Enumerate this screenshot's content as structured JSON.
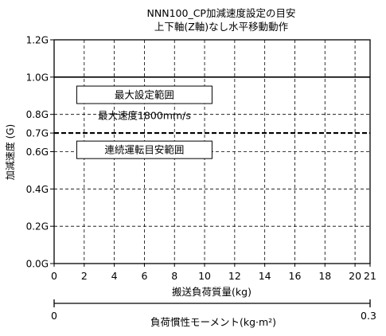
{
  "chart_data": {
    "type": "line",
    "title": [
      "NNN100_CP加減速度設定の目安",
      "上下軸(Z軸)なし水平移動動作"
    ],
    "xlabel": "搬送負荷質量(kg)",
    "ylabel": "加減速度 (G)",
    "xlim": [
      0,
      21
    ],
    "ylim": [
      0,
      1.2
    ],
    "x_ticks": [
      0,
      2,
      4,
      6,
      8,
      10,
      12,
      14,
      16,
      18,
      20,
      21
    ],
    "y_ticks": [
      {
        "value": 0.0,
        "label": "0.0G"
      },
      {
        "value": 0.2,
        "label": "0.2G"
      },
      {
        "value": 0.4,
        "label": "0.4G"
      },
      {
        "value": 0.6,
        "label": "0.6G"
      },
      {
        "value": 0.7,
        "label": "0.7G"
      },
      {
        "value": 0.8,
        "label": "0.8G"
      },
      {
        "value": 1.0,
        "label": "1.0G"
      },
      {
        "value": 1.2,
        "label": "1.2G"
      }
    ],
    "grid": true,
    "series": [
      {
        "name": "最大設定範囲",
        "style": "solid",
        "x": [
          0,
          21
        ],
        "y": [
          1.0,
          1.0
        ],
        "color": "#000000"
      },
      {
        "name": "連続運転目安範囲",
        "style": "dashed",
        "x": [
          0,
          21
        ],
        "y": [
          0.7,
          0.7
        ],
        "color": "#000000"
      }
    ],
    "annotations": [
      {
        "text": "最大設定範囲",
        "boxed": true,
        "x": 6.0,
        "y": 0.905
      },
      {
        "text": "最大速度1800mm/s",
        "boxed": false,
        "x": 6.0,
        "y": 0.795
      },
      {
        "text": "連続運転目安範囲",
        "boxed": true,
        "x": 6.0,
        "y": 0.61
      }
    ],
    "secondary_x_axis": {
      "label": "負荷慣性モーメント(kg·m²)",
      "min_label": "0",
      "max_label": "0.3"
    }
  }
}
